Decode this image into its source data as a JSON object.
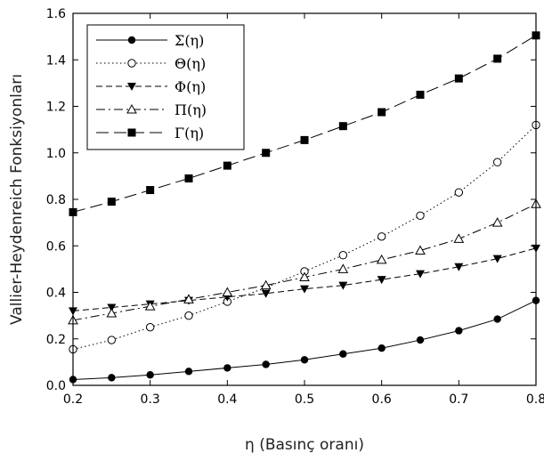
{
  "chart_data": {
    "type": "line",
    "xlabel": "η (Basınç oranı)",
    "ylabel": "Vallier-Heydenreich Fonksiyonları",
    "xlim": [
      0.2,
      0.8
    ],
    "ylim": [
      0.0,
      1.6
    ],
    "xticks": [
      "0.2",
      "0.3",
      "0.4",
      "0.5",
      "0.6",
      "0.7",
      "0.8"
    ],
    "yticks": [
      "0.0",
      "0.2",
      "0.4",
      "0.6",
      "0.8",
      "1.0",
      "1.2",
      "1.4",
      "1.6"
    ],
    "grid": false,
    "legend_position": "top-left",
    "x": [
      0.2,
      0.25,
      0.3,
      0.35,
      0.4,
      0.45,
      0.5,
      0.55,
      0.6,
      0.65,
      0.7,
      0.75,
      0.8
    ],
    "series": [
      {
        "name": "Σ(η)",
        "marker": "filled-circle",
        "dash": "solid",
        "values": [
          0.025,
          0.033,
          0.045,
          0.06,
          0.075,
          0.09,
          0.11,
          0.135,
          0.16,
          0.195,
          0.235,
          0.285,
          0.365
        ]
      },
      {
        "name": "Θ(η)",
        "marker": "open-circle",
        "dash": "dotted",
        "values": [
          0.155,
          0.195,
          0.25,
          0.3,
          0.36,
          0.42,
          0.49,
          0.56,
          0.64,
          0.73,
          0.83,
          0.96,
          1.12
        ]
      },
      {
        "name": "Φ(η)",
        "marker": "filled-triangle-down",
        "dash": "dashed",
        "values": [
          0.32,
          0.335,
          0.35,
          0.365,
          0.38,
          0.395,
          0.415,
          0.43,
          0.455,
          0.48,
          0.51,
          0.545,
          0.59
        ]
      },
      {
        "name": "Π(η)",
        "marker": "open-triangle-up",
        "dash": "dash-dot",
        "values": [
          0.28,
          0.31,
          0.34,
          0.37,
          0.4,
          0.43,
          0.465,
          0.5,
          0.54,
          0.58,
          0.63,
          0.7,
          0.78
        ]
      },
      {
        "name": "Γ(η)",
        "marker": "filled-square",
        "dash": "long-dash",
        "values": [
          0.745,
          0.79,
          0.84,
          0.89,
          0.945,
          1.0,
          1.055,
          1.115,
          1.175,
          1.25,
          1.32,
          1.405,
          1.505
        ]
      }
    ]
  }
}
